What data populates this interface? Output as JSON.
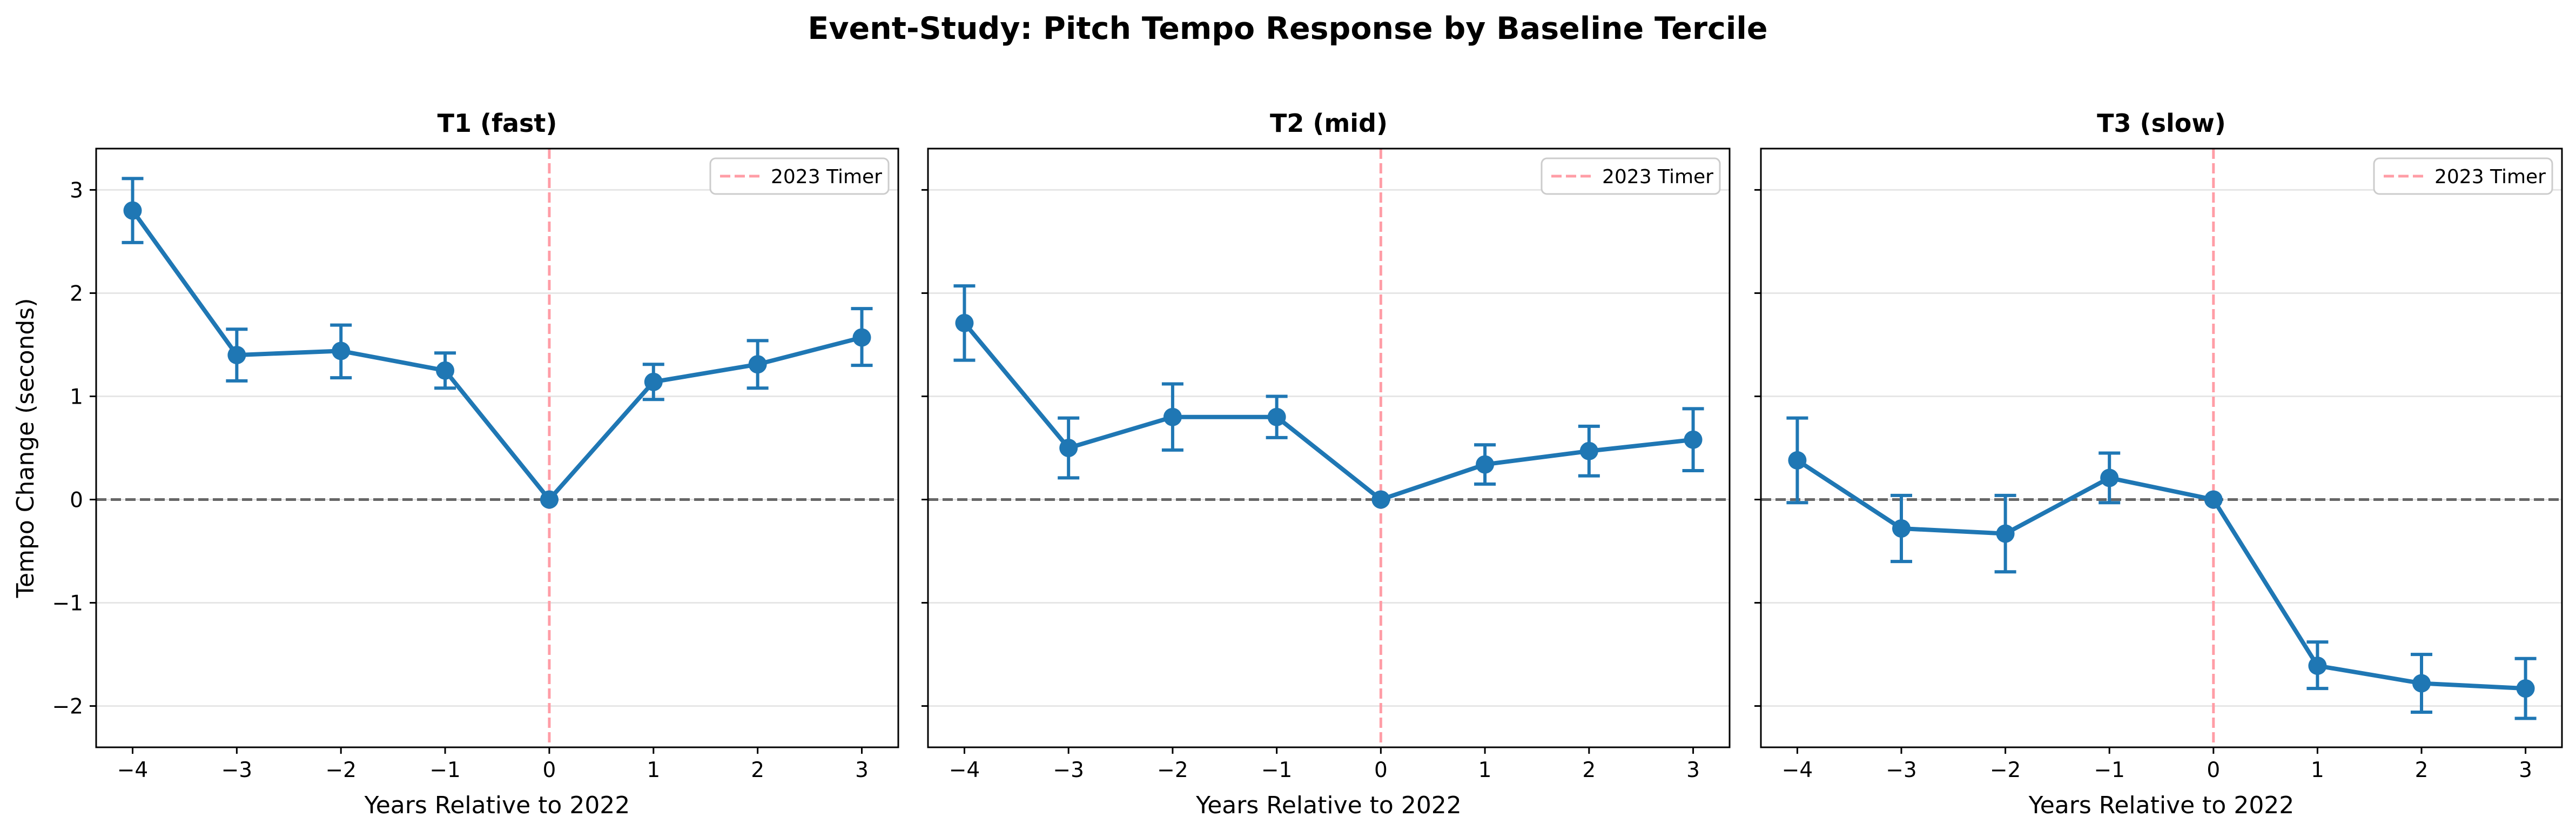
{
  "figure": {
    "title": "Event-Study: Pitch Tempo Response by Baseline Tercile"
  },
  "colors": {
    "series": "#1f77b4",
    "event_line": "#ff9da6",
    "zero_line": "#666666",
    "grid": "#e6e6e6",
    "axes": "#000000"
  },
  "chart_data": [
    {
      "type": "line",
      "title": "T1 (fast)",
      "xlabel": "Years Relative to 2022",
      "ylabel": "Tempo Change (seconds)",
      "x": [
        -4,
        -3,
        -2,
        -1,
        0,
        1,
        2,
        3
      ],
      "y": [
        2.8,
        1.4,
        1.44,
        1.25,
        0.0,
        1.14,
        1.31,
        1.57
      ],
      "ci_low": [
        2.49,
        1.15,
        1.18,
        1.08,
        0.0,
        0.97,
        1.08,
        1.3
      ],
      "ci_high": [
        3.11,
        1.65,
        1.69,
        1.42,
        0.0,
        1.31,
        1.54,
        1.85
      ],
      "xlim": [
        -4.35,
        3.35
      ],
      "ylim": [
        -2.4,
        3.4
      ],
      "xticks": [
        "−4",
        "−3",
        "−2",
        "−1",
        "0",
        "1",
        "2",
        "3"
      ],
      "yticks": [
        "3",
        "2",
        "1",
        "0",
        "−1",
        "−2"
      ],
      "event_x": 0,
      "reference_y": 0,
      "legend": {
        "label": "2023 Timer",
        "placement": "upper right"
      },
      "grid": "y"
    },
    {
      "type": "line",
      "title": "T2 (mid)",
      "xlabel": "Years Relative to 2022",
      "ylabel": "",
      "x": [
        -4,
        -3,
        -2,
        -1,
        0,
        1,
        2,
        3
      ],
      "y": [
        1.71,
        0.5,
        0.8,
        0.8,
        0.0,
        0.34,
        0.47,
        0.58
      ],
      "ci_low": [
        1.35,
        0.21,
        0.48,
        0.6,
        0.0,
        0.15,
        0.23,
        0.28
      ],
      "ci_high": [
        2.07,
        0.79,
        1.12,
        1.0,
        0.0,
        0.53,
        0.71,
        0.88
      ],
      "xlim": [
        -4.35,
        3.35
      ],
      "ylim": [
        -2.4,
        3.4
      ],
      "xticks": [
        "−4",
        "−3",
        "−2",
        "−1",
        "0",
        "1",
        "2",
        "3"
      ],
      "yticks": [],
      "event_x": 0,
      "reference_y": 0,
      "legend": {
        "label": "2023 Timer",
        "placement": "upper right"
      },
      "grid": "y"
    },
    {
      "type": "line",
      "title": "T3 (slow)",
      "xlabel": "Years Relative to 2022",
      "ylabel": "",
      "x": [
        -4,
        -3,
        -2,
        -1,
        0,
        1,
        2,
        3
      ],
      "y": [
        0.38,
        -0.28,
        -0.33,
        0.21,
        0.0,
        -1.61,
        -1.78,
        -1.83
      ],
      "ci_low": [
        -0.03,
        -0.6,
        -0.7,
        -0.03,
        0.0,
        -1.83,
        -2.06,
        -2.12
      ],
      "ci_high": [
        0.79,
        0.04,
        0.04,
        0.45,
        0.0,
        -1.38,
        -1.5,
        -1.54
      ],
      "xlim": [
        -4.35,
        3.35
      ],
      "ylim": [
        -2.4,
        3.4
      ],
      "xticks": [
        "−4",
        "−3",
        "−2",
        "−1",
        "0",
        "1",
        "2",
        "3"
      ],
      "yticks": [],
      "event_x": 0,
      "reference_y": 0,
      "legend": {
        "label": "2023 Timer",
        "placement": "upper right"
      },
      "grid": "y"
    }
  ]
}
